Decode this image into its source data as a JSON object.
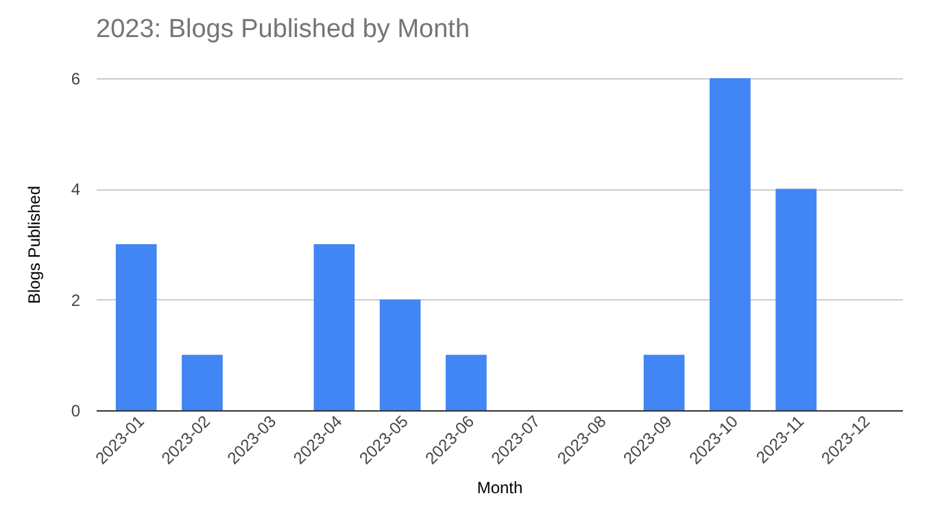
{
  "chart_data": {
    "type": "bar",
    "title": "2023: Blogs Published by Month",
    "xlabel": "Month",
    "ylabel": "Blogs Published",
    "categories": [
      "2023-01",
      "2023-02",
      "2023-03",
      "2023-04",
      "2023-05",
      "2023-06",
      "2023-07",
      "2023-08",
      "2023-09",
      "2023-10",
      "2023-11",
      "2023-12"
    ],
    "values": [
      3,
      1,
      0,
      3,
      2,
      1,
      0,
      0,
      1,
      6,
      4,
      0
    ],
    "color": "#4285f4",
    "ylim": [
      0,
      6
    ],
    "yticks": [
      0,
      2,
      4,
      6
    ],
    "grid": "y"
  }
}
